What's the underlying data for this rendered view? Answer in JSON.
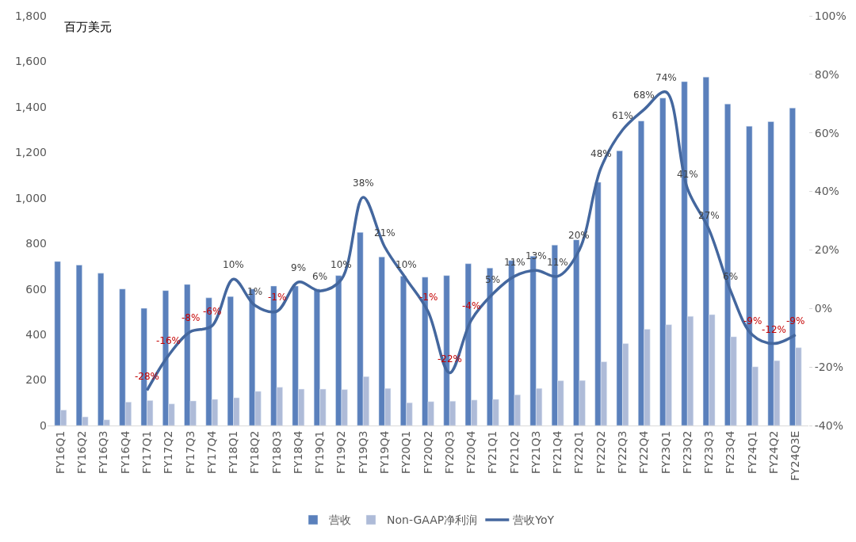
{
  "chart_data": {
    "type": "bar",
    "ylabel": "百万美元",
    "categories": [
      "FY16Q1",
      "FY16Q2",
      "FY16Q3",
      "FY16Q4",
      "FY17Q1",
      "FY17Q2",
      "FY17Q3",
      "FY17Q4",
      "FY18Q1",
      "FY18Q2",
      "FY18Q3",
      "FY18Q4",
      "FY19Q1",
      "FY19Q2",
      "FY19Q3",
      "FY19Q4",
      "FY20Q1",
      "FY20Q2",
      "FY20Q3",
      "FY20Q4",
      "FY21Q1",
      "FY21Q2",
      "FY21Q3",
      "FY21Q4",
      "FY22Q1",
      "FY22Q2",
      "FY22Q3",
      "FY22Q4",
      "FY23Q1",
      "FY23Q2",
      "FY23Q3",
      "FY23Q4",
      "FY24Q1",
      "FY24Q2",
      "FY24Q3E"
    ],
    "series": [
      {
        "name": "营收",
        "color": "#5a80bc",
        "values": [
          721,
          705,
          669,
          600,
          515,
          593,
          620,
          561,
          567,
          600,
          613,
          613,
          600,
          659,
          849,
          741,
          656,
          652,
          659,
          711,
          692,
          725,
          744,
          793,
          816,
          1069,
          1207,
          1338,
          1439,
          1511,
          1531,
          1413,
          1315,
          1335,
          1395
        ]
      },
      {
        "name": "Non-GAAP净利润",
        "color": "#aebbd8",
        "values": [
          68,
          38,
          25,
          103,
          110,
          95,
          108,
          115,
          122,
          150,
          168,
          160,
          160,
          158,
          215,
          163,
          100,
          105,
          107,
          112,
          115,
          135,
          163,
          197,
          198,
          280,
          360,
          423,
          443,
          480,
          487,
          390,
          258,
          285,
          342
        ]
      },
      {
        "name": "营收YoY",
        "type": "line",
        "axis": "y2",
        "color": "#44679e",
        "line_style": "solid",
        "marker": "none",
        "values": [
          null,
          null,
          null,
          null,
          -28,
          -16,
          -8,
          -6,
          10,
          1,
          -1,
          9,
          6,
          10,
          38,
          21,
          10,
          -1,
          -22,
          -4,
          5,
          11,
          13,
          11,
          20,
          48,
          61,
          68,
          74,
          41,
          27,
          6,
          -9,
          -12,
          -9
        ],
        "value_labels": [
          null,
          null,
          null,
          null,
          "-28%",
          "-16%",
          "-8%",
          "-6%",
          "10%",
          "1%",
          "-1%",
          "9%",
          "6%",
          "10%",
          "38%",
          "21%",
          "10%",
          "-1%",
          "-22%",
          "-4%",
          "5%",
          "11%",
          "13%",
          "11%",
          "20%",
          "48%",
          "61%",
          "68%",
          "74%",
          "41%",
          "27%",
          "6%",
          "-9%",
          "-12%",
          "-9%"
        ]
      }
    ],
    "ylim": [
      0,
      1800
    ],
    "yticks": [
      0,
      200,
      400,
      600,
      800,
      {
        "value": 1000,
        "label": "1,000"
      },
      {
        "value": 1200,
        "label": "1,200"
      },
      {
        "value": 1400,
        "label": "1,400"
      },
      {
        "value": 1600,
        "label": "1,600"
      },
      {
        "value": 1800,
        "label": "1,800"
      }
    ],
    "y2lim": [
      -40,
      100
    ],
    "y2ticks": [
      {
        "value": -40,
        "label": "-40%"
      },
      {
        "value": -20,
        "label": "-20%"
      },
      {
        "value": 0,
        "label": "0%"
      },
      {
        "value": 20,
        "label": "20%"
      },
      {
        "value": 40,
        "label": "40%"
      },
      {
        "value": 60,
        "label": "60%"
      },
      {
        "value": 80,
        "label": "80%"
      },
      {
        "value": 100,
        "label": "100%"
      }
    ],
    "legend": "bottom"
  }
}
